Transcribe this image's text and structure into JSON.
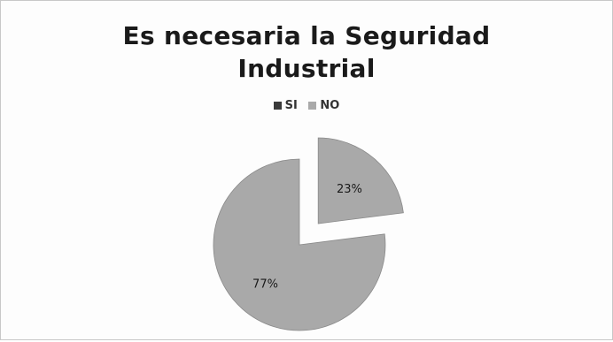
{
  "chart_data": {
    "type": "pie",
    "title": "Es necesaria la Seguridad Industrial",
    "title_lines": [
      "Es necesaria la Seguridad",
      "Industrial"
    ],
    "legend_placement": "top",
    "series": [
      {
        "name": "SI",
        "value": 23,
        "label": "23%",
        "color": "#a9a9a9",
        "exploded": true
      },
      {
        "name": "NO",
        "value": 77,
        "label": "77%",
        "color": "#a9a9a9",
        "exploded": false
      }
    ],
    "legend": [
      {
        "name": "SI",
        "color": "#3a3a3a"
      },
      {
        "name": "NO",
        "color": "#a9a9a9"
      }
    ]
  }
}
